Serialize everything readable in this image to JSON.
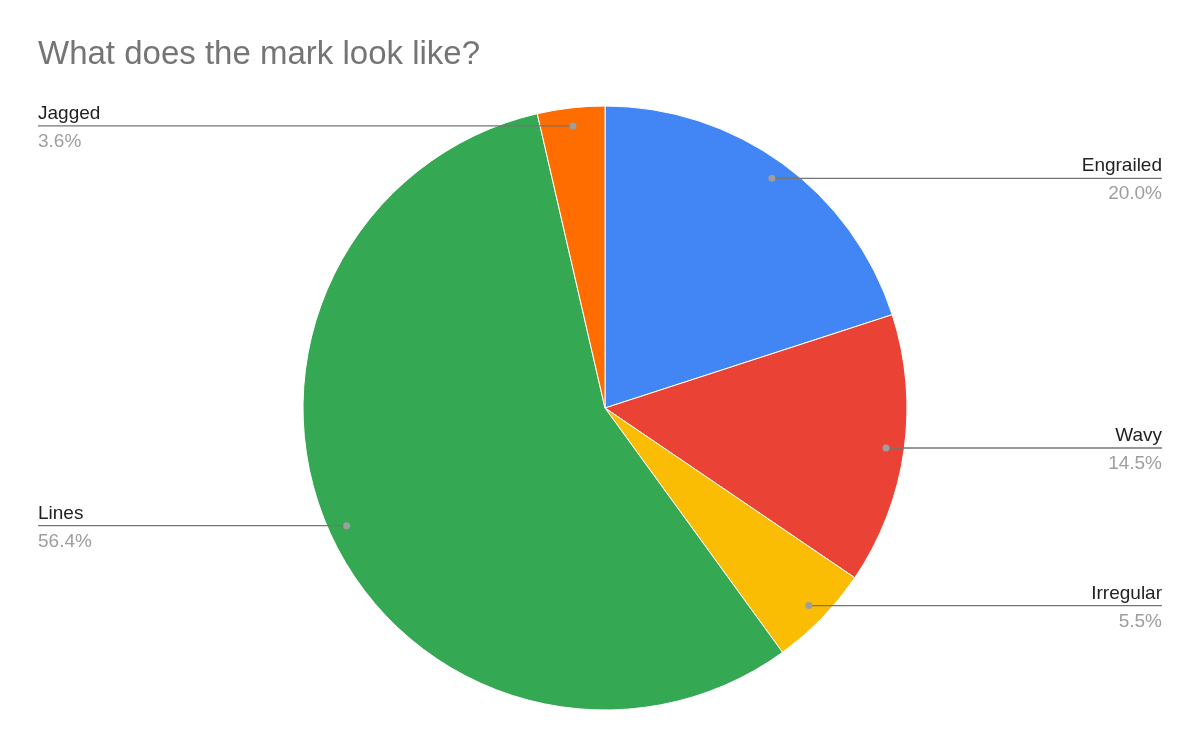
{
  "chart_data": {
    "type": "pie",
    "title": "What does the mark look like?",
    "categories": [
      "Engrailed",
      "Wavy",
      "Irregular",
      "Lines",
      "Jagged"
    ],
    "values": [
      20.0,
      14.5,
      5.5,
      56.4,
      3.6
    ],
    "colors": [
      "#4285f4",
      "#ea4335",
      "#fbbc04",
      "#34a853",
      "#ff6d01"
    ],
    "value_labels": [
      "20.0%",
      "14.5%",
      "5.5%",
      "56.4%",
      "3.6%"
    ]
  }
}
